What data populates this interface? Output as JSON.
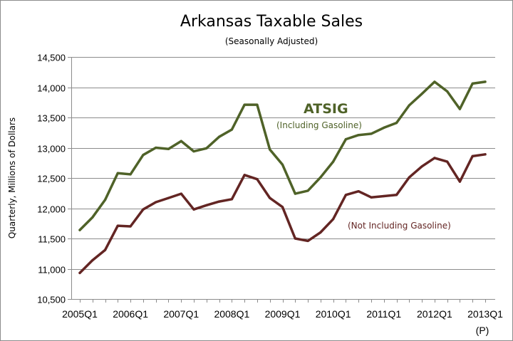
{
  "chart_data": {
    "type": "line",
    "title": "Arkansas Taxable Sales",
    "subtitle": "(Seasonally Adjusted)",
    "ylabel": "Quarterly, Millions of Dollars",
    "xlabel": "",
    "ylim": [
      10500,
      14500
    ],
    "yticks": [
      "10,500",
      "11,000",
      "11,500",
      "12,000",
      "12,500",
      "13,000",
      "13,500",
      "14,000",
      "14,500"
    ],
    "ytick_values": [
      10500,
      11000,
      11500,
      12000,
      12500,
      13000,
      13500,
      14000,
      14500
    ],
    "xtick_labels": [
      "2005Q1",
      "2006Q1",
      "2007Q1",
      "2008Q1",
      "2009Q1",
      "2010Q1",
      "2011Q1",
      "2012Q1",
      "2013Q1"
    ],
    "xtick_note": "(P)",
    "grid": true,
    "categories": [
      "2005Q1",
      "2005Q2",
      "2005Q3",
      "2005Q4",
      "2006Q1",
      "2006Q2",
      "2006Q3",
      "2006Q4",
      "2007Q1",
      "2007Q2",
      "2007Q3",
      "2007Q4",
      "2008Q1",
      "2008Q2",
      "2008Q3",
      "2008Q4",
      "2009Q1",
      "2009Q2",
      "2009Q3",
      "2009Q4",
      "2010Q1",
      "2010Q2",
      "2010Q3",
      "2010Q4",
      "2011Q1",
      "2011Q2",
      "2011Q3",
      "2011Q4",
      "2012Q1",
      "2012Q2",
      "2012Q3",
      "2012Q4",
      "2013Q1"
    ],
    "series": [
      {
        "name": "ATSIG",
        "annotation_title": "ATSIG",
        "annotation_sub": "(Including Gasoline)",
        "color": "#4f6228",
        "values": [
          11640,
          11850,
          12140,
          12580,
          12560,
          12880,
          13000,
          12980,
          13110,
          12940,
          12990,
          13180,
          13300,
          13710,
          13710,
          12970,
          12720,
          12240,
          12290,
          12510,
          12770,
          13140,
          13210,
          13230,
          13330,
          13410,
          13700,
          13890,
          14090,
          13930,
          13640,
          14060,
          14090
        ]
      },
      {
        "name": "(Not Including Gasoline)",
        "color": "#632523",
        "values": [
          10930,
          11140,
          11310,
          11710,
          11700,
          11980,
          12100,
          12170,
          12240,
          11980,
          12050,
          12110,
          12150,
          12550,
          12480,
          12170,
          12020,
          11500,
          11460,
          11600,
          11820,
          12220,
          12280,
          12180,
          12200,
          12220,
          12510,
          12690,
          12830,
          12770,
          12440,
          12860,
          12890
        ]
      }
    ]
  }
}
